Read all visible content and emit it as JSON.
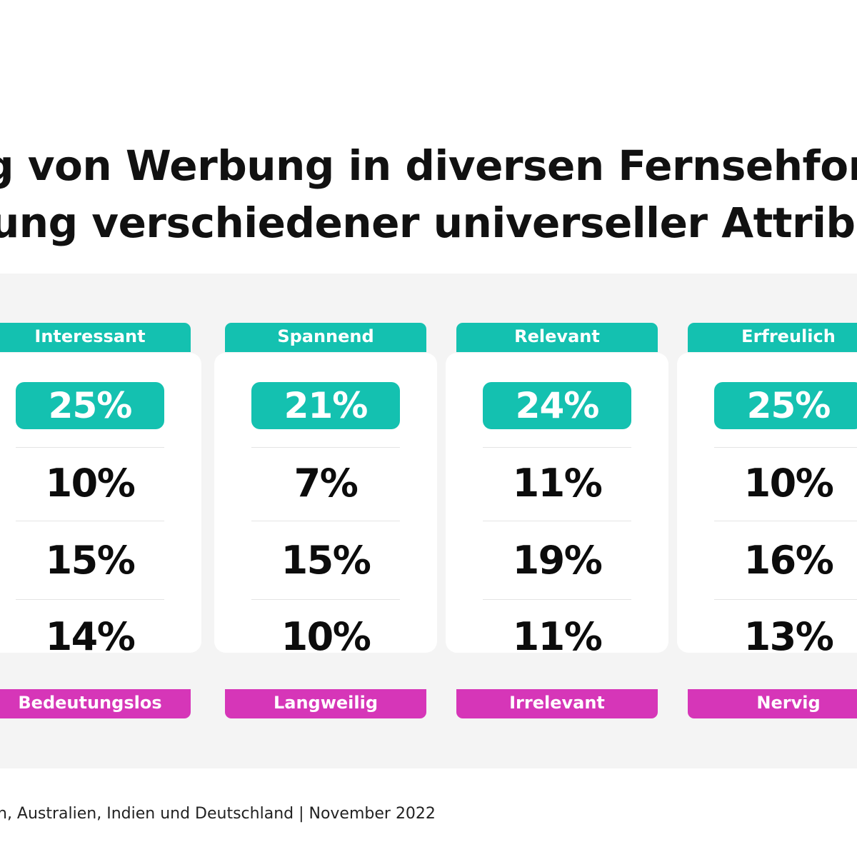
{
  "title": {
    "line1": "g von Werbung in diversen Fernsehform",
    "line2": "ung verschiedener universeller Attribut"
  },
  "chart_data": {
    "type": "table",
    "title": "g von Werbung in diversen Fernsehform / ung verschiedener universeller Attribut",
    "columns": [
      {
        "top_label": "Interessant",
        "bottom_label": "Bedeutungslos",
        "values": [
          "25%",
          "10%",
          "15%",
          "14%"
        ]
      },
      {
        "top_label": "Spannend",
        "bottom_label": "Langweilig",
        "values": [
          "21%",
          "7%",
          "15%",
          "10%"
        ]
      },
      {
        "top_label": "Relevant",
        "bottom_label": "Irrelevant",
        "values": [
          "24%",
          "11%",
          "19%",
          "11%"
        ]
      },
      {
        "top_label": "Erfreulich",
        "bottom_label": "Nervig",
        "values": [
          "25%",
          "10%",
          "16%",
          "13%"
        ]
      }
    ]
  },
  "colors": {
    "accent_top": "#14c1b0",
    "accent_bottom": "#d636b8",
    "panel": "#f4f4f4"
  },
  "footer": {
    "text": "n, Australien, Indien und Deutschland | November 2022"
  }
}
